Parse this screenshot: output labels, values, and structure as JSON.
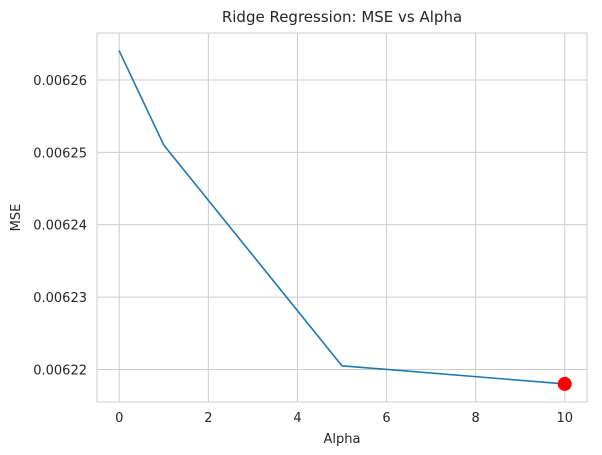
{
  "chart_data": {
    "type": "line",
    "title": "Ridge Regression: MSE vs Alpha",
    "xlabel": "Alpha",
    "ylabel": "MSE",
    "x": [
      0,
      1,
      5,
      10
    ],
    "series": [
      {
        "values": [
          0.006264,
          0.006251,
          0.0062205,
          0.006218
        ],
        "color": "#1f77b4"
      }
    ],
    "highlight_point": {
      "x": 10,
      "y": 0.006218,
      "color": "#ff0000"
    },
    "xlim": [
      -0.5,
      10.5
    ],
    "ylim": [
      0.0062155,
      0.0062665
    ],
    "xticks": [
      0,
      2,
      4,
      6,
      8,
      10
    ],
    "xtick_labels": [
      "0",
      "2",
      "4",
      "6",
      "8",
      "10"
    ],
    "yticks": [
      0.00622,
      0.00623,
      0.00624,
      0.00625,
      0.00626
    ],
    "ytick_labels": [
      "0.00622",
      "0.00623",
      "0.00624",
      "0.00625",
      "0.00626"
    ],
    "grid": true,
    "legend": false,
    "colors": {
      "grid": "#cccccc",
      "text": "#262626",
      "frame": "#cccccc"
    }
  }
}
